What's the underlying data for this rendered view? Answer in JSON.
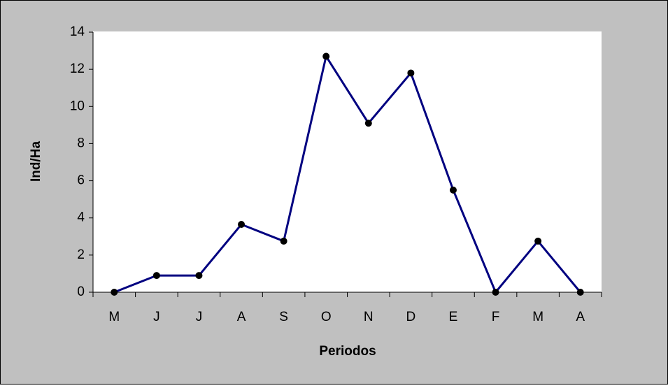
{
  "chart_data": {
    "type": "line",
    "categories": [
      "M",
      "J",
      "J",
      "A",
      "S",
      "O",
      "N",
      "D",
      "E",
      "F",
      "M",
      "A"
    ],
    "series": [
      {
        "color": "#000080",
        "values": [
          0,
          0.9,
          0.9,
          3.65,
          2.75,
          12.7,
          9.1,
          11.8,
          5.5,
          0,
          2.75,
          0
        ]
      }
    ],
    "ylim": [
      0,
      14
    ],
    "yticks": [
      0,
      2,
      4,
      6,
      8,
      10,
      12,
      14
    ],
    "xlabel": "Periodos",
    "ylabel": "Ind/Ha",
    "grid": false
  }
}
